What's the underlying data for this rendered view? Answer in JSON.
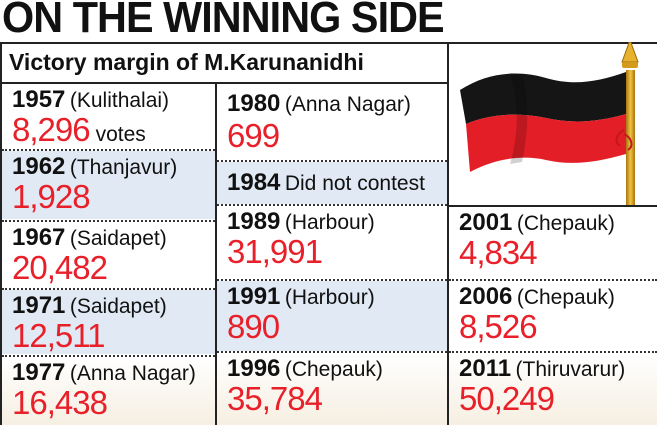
{
  "header": {
    "title": "ON THE WINNING SIDE",
    "subtitle": "Victory margin of M.Karunanidhi"
  },
  "entries": [
    {
      "year": "1957",
      "place": "(Kulithalai)",
      "margin": "8,296",
      "unit": "votes"
    },
    {
      "year": "1962",
      "place": "(Thanjavur)",
      "margin": "1,928"
    },
    {
      "year": "1967",
      "place": "(Saidapet)",
      "margin": "20,482"
    },
    {
      "year": "1971",
      "place": "(Saidapet)",
      "margin": "12,511"
    },
    {
      "year": "1977",
      "place": "(Anna Nagar)",
      "margin": "16,438"
    },
    {
      "year": "1980",
      "place": "(Anna Nagar)",
      "margin": "699"
    },
    {
      "year": "1984",
      "place": "Did not contest"
    },
    {
      "year": "1989",
      "place": "(Harbour)",
      "margin": "31,991"
    },
    {
      "year": "1991",
      "place": "(Harbour)",
      "margin": "890"
    },
    {
      "year": "1996",
      "place": "(Chepauk)",
      "margin": "35,784"
    },
    {
      "year": "2001",
      "place": "(Chepauk)",
      "margin": "4,834"
    },
    {
      "year": "2006",
      "place": "(Chepauk)",
      "margin": "8,526"
    },
    {
      "year": "2011",
      "place": "(Thiruvarur)",
      "margin": "50,249"
    }
  ],
  "colors": {
    "number": "#e8202a",
    "shade": "#e1e9f4",
    "flag_red": "#e41e26",
    "flag_black": "#151515",
    "pole_gold": "#d9a21b"
  },
  "icons": [
    "party-flag-icon"
  ]
}
